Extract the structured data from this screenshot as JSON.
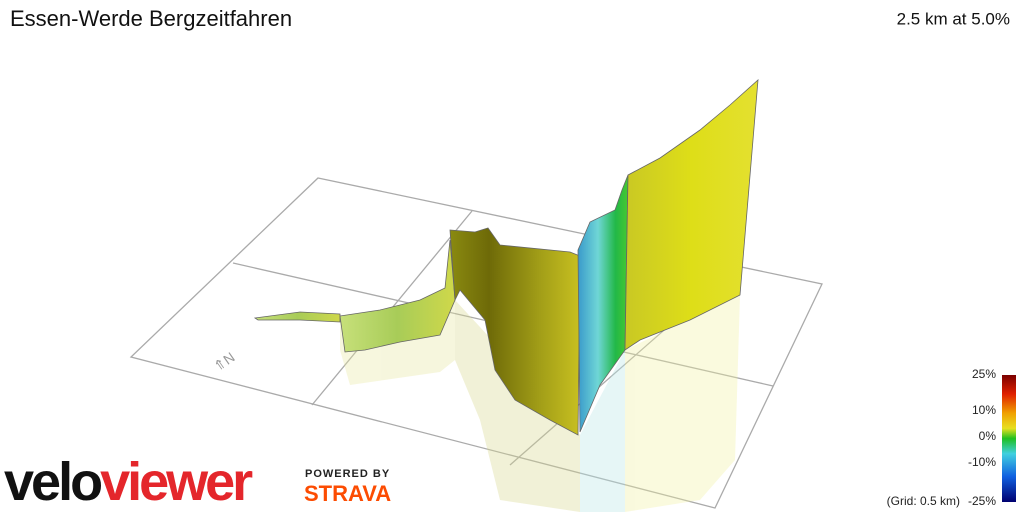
{
  "header": {
    "title": "Essen-Werde Bergzeitfahren",
    "summary": "2.5 km at 5.0%"
  },
  "legend": {
    "ticks": [
      "25%",
      "10%",
      "0%",
      "-10%",
      "-25%"
    ],
    "grid_note": "(Grid: 0.5 km)"
  },
  "branding": {
    "logo_part1": "velo",
    "logo_part2": "viewer",
    "powered_by": "POWERED BY",
    "partner": "STRAVA"
  }
}
